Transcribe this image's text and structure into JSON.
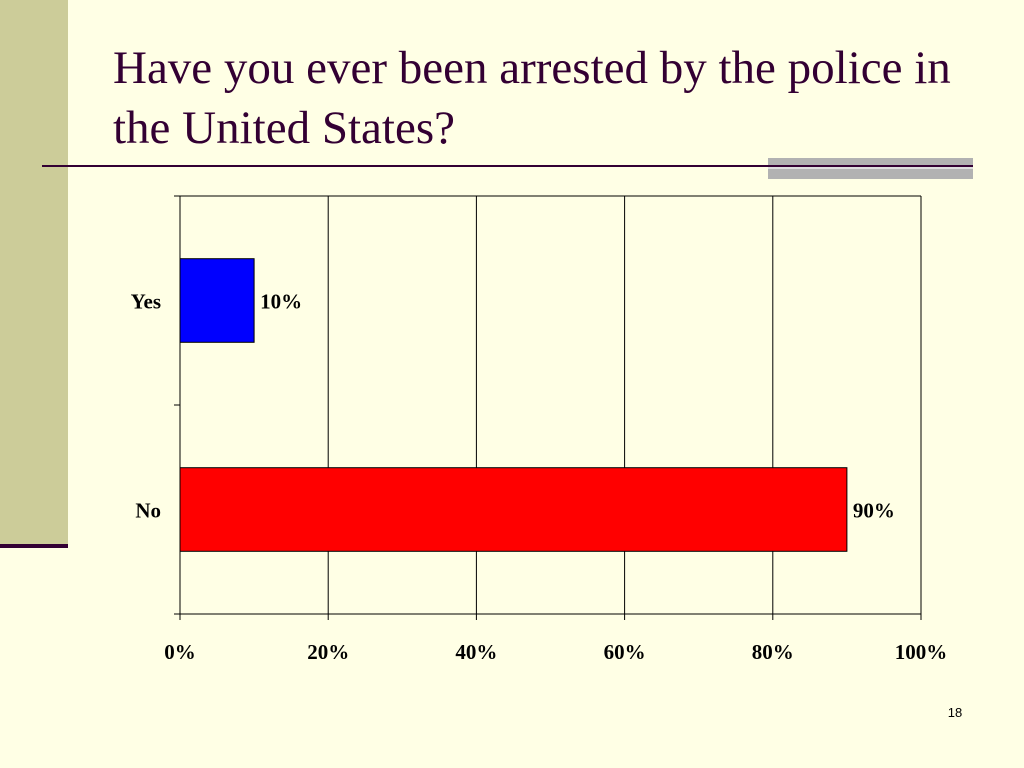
{
  "slide": {
    "title": "Have you ever been arrested by the police in the United States?",
    "number": "18"
  },
  "colors": {
    "background": "#ffffe5",
    "side_band": "#cccc99",
    "title_text": "#330033",
    "rule_gray": "#b2b2b2"
  },
  "chart_data": {
    "type": "bar",
    "orientation": "horizontal",
    "title": "",
    "xlabel": "",
    "ylabel": "",
    "categories": [
      "Yes",
      "No"
    ],
    "values": [
      10,
      90
    ],
    "value_labels": [
      "10%",
      "90%"
    ],
    "bar_colors": [
      "#0000ff",
      "#ff0000"
    ],
    "xlim": [
      0,
      100
    ],
    "xticks": [
      0,
      20,
      40,
      60,
      80,
      100
    ],
    "xtick_labels": [
      "0%",
      "20%",
      "40%",
      "60%",
      "80%",
      "100%"
    ],
    "grid": "vertical",
    "legend": "none"
  }
}
